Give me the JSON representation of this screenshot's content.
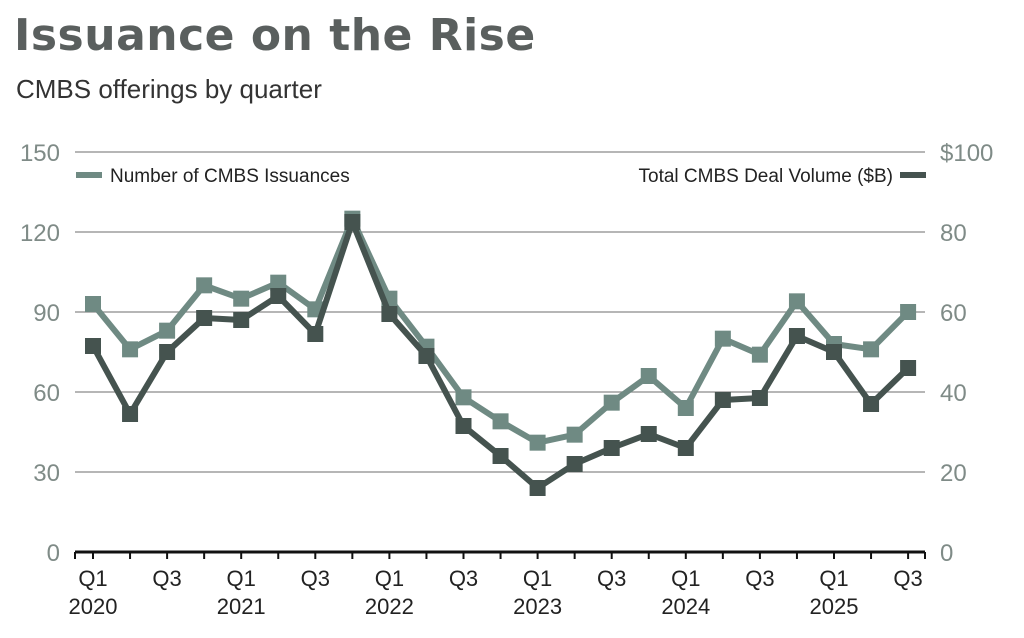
{
  "chart_data": {
    "type": "line",
    "title": "Issuance on the Rise",
    "subtitle": "CMBS offerings by quarter",
    "x": [
      "Q1 2020",
      "Q2 2020",
      "Q3 2020",
      "Q4 2020",
      "Q1 2021",
      "Q2 2021",
      "Q3 2021",
      "Q4 2021",
      "Q1 2022",
      "Q2 2022",
      "Q3 2022",
      "Q4 2022",
      "Q1 2023",
      "Q2 2023",
      "Q3 2023",
      "Q4 2023",
      "Q1 2024",
      "Q2 2024",
      "Q3 2024",
      "Q4 2024",
      "Q1 2025",
      "Q2 2025",
      "Q3 2025"
    ],
    "x_tick_labels": [
      {
        "index": 0,
        "q": "Q1",
        "year": "2020"
      },
      {
        "index": 2,
        "q": "Q3",
        "year": ""
      },
      {
        "index": 4,
        "q": "Q1",
        "year": "2021"
      },
      {
        "index": 6,
        "q": "Q3",
        "year": ""
      },
      {
        "index": 8,
        "q": "Q1",
        "year": "2022"
      },
      {
        "index": 10,
        "q": "Q3",
        "year": ""
      },
      {
        "index": 12,
        "q": "Q1",
        "year": "2023"
      },
      {
        "index": 14,
        "q": "Q3",
        "year": ""
      },
      {
        "index": 16,
        "q": "Q1",
        "year": "2024"
      },
      {
        "index": 18,
        "q": "Q3",
        "year": ""
      },
      {
        "index": 20,
        "q": "Q1",
        "year": "2025"
      },
      {
        "index": 22,
        "q": "Q3",
        "year": ""
      }
    ],
    "left_axis": {
      "ylim": [
        0,
        150
      ],
      "ticks": [
        "0",
        "30",
        "60",
        "90",
        "120",
        "150"
      ]
    },
    "right_axis": {
      "ylim": [
        0,
        100
      ],
      "ticks": [
        "0",
        "20",
        "40",
        "60",
        "80",
        "$100"
      ]
    },
    "grid": true,
    "legend_placement": "top",
    "series": [
      {
        "name": "Number of CMBS Issuances",
        "axis": "left",
        "color": "#6f8a83",
        "values": [
          93,
          76,
          83,
          100,
          95,
          101,
          91,
          125,
          95,
          77,
          58,
          49,
          41,
          44,
          56,
          66,
          54,
          80,
          74,
          94,
          78,
          76,
          90
        ]
      },
      {
        "name": "Total CMBS Deal Volume ($B)",
        "axis": "right",
        "color": "#45534f",
        "values": [
          51.5,
          34.5,
          50,
          58.5,
          58,
          64,
          54.5,
          82.5,
          59.5,
          49,
          31.5,
          24,
          16,
          22,
          26,
          29.5,
          26,
          38,
          38.5,
          54,
          50,
          37,
          46
        ]
      }
    ]
  }
}
